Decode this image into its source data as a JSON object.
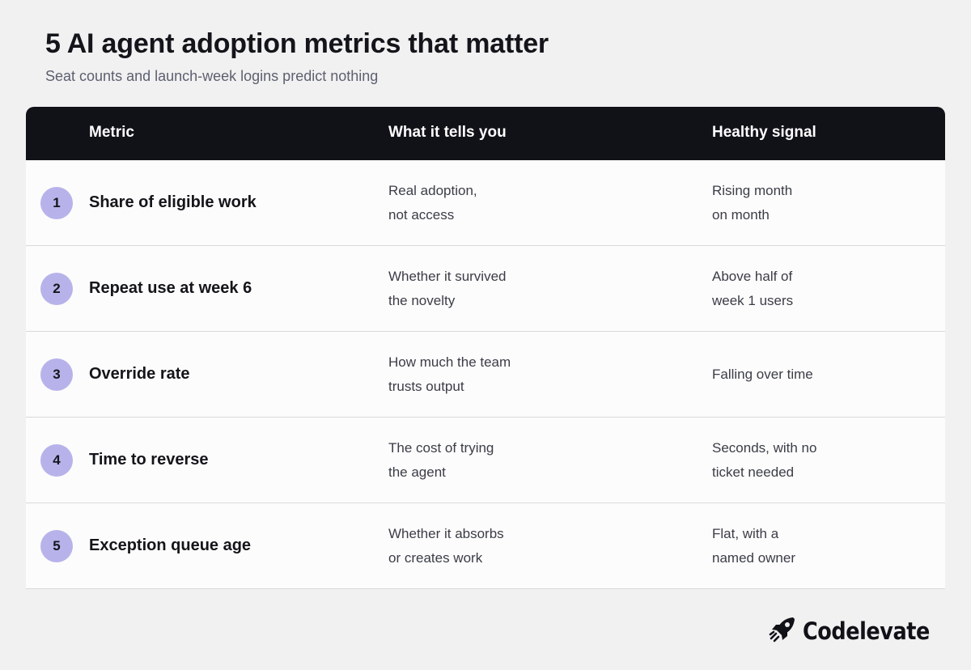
{
  "header": {
    "title": "5 AI agent adoption metrics that matter",
    "subtitle": "Seat counts and launch-week logins predict nothing"
  },
  "table": {
    "columns": [
      "Metric",
      "What it tells you",
      "Healthy signal"
    ],
    "rows": [
      {
        "number": "1",
        "metric": "Share of eligible work",
        "tells": [
          "Real adoption,",
          "not access"
        ],
        "signal": [
          "Rising month",
          "on month"
        ]
      },
      {
        "number": "2",
        "metric": "Repeat use at week 6",
        "tells": [
          "Whether it survived",
          "the novelty"
        ],
        "signal": [
          "Above half of",
          "week 1 users"
        ]
      },
      {
        "number": "3",
        "metric": "Override rate",
        "tells": [
          "How much the team",
          "trusts output"
        ],
        "signal": [
          "Falling over time"
        ]
      },
      {
        "number": "4",
        "metric": "Time to reverse",
        "tells": [
          "The cost of trying",
          "the agent"
        ],
        "signal": [
          "Seconds, with no",
          "ticket needed"
        ]
      },
      {
        "number": "5",
        "metric": "Exception queue age",
        "tells": [
          "Whether it absorbs",
          "or creates work"
        ],
        "signal": [
          "Flat, with a",
          "named owner"
        ]
      }
    ]
  },
  "brand": {
    "name": "Codelevate",
    "icon": "rocket-icon"
  },
  "colors": {
    "header_bg": "#111218",
    "badge_bg": "#b7b3ea",
    "page_bg": "#f1f1f1",
    "row_bg": "#fcfcfc"
  }
}
